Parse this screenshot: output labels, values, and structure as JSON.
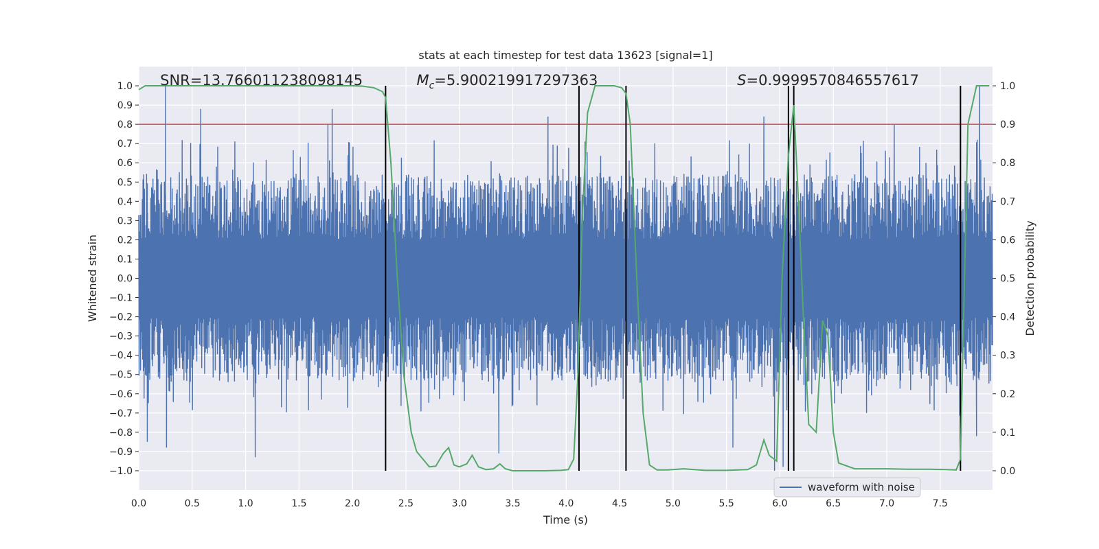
{
  "chart_data": {
    "type": "line",
    "title": "stats at each timestep for test data 13623 [signal=1]",
    "xlabel": "Time (s)",
    "ylabel": "Whitened strain",
    "ylabel_right": "Detection probability",
    "xlim": [
      0,
      7.99
    ],
    "ylim": [
      -1.1,
      1.1
    ],
    "ylim_right": [
      -0.05,
      1.05
    ],
    "x_ticks": [
      0.0,
      0.5,
      1.0,
      1.5,
      2.0,
      2.5,
      3.0,
      3.5,
      4.0,
      4.5,
      5.0,
      5.5,
      6.0,
      6.5,
      7.0,
      7.5
    ],
    "x_tick_labels": [
      "0.0",
      "0.5",
      "1.0",
      "1.5",
      "2.0",
      "2.5",
      "3.0",
      "3.5",
      "4.0",
      "4.5",
      "5.0",
      "5.5",
      "6.0",
      "6.5",
      "7.0",
      "7.5"
    ],
    "y_ticks": [
      1.0,
      0.9,
      0.8,
      0.7,
      0.6,
      0.5,
      0.4,
      0.3,
      0.2,
      0.1,
      0.0,
      -0.1,
      -0.2,
      -0.3,
      -0.4,
      -0.5,
      -0.6,
      -0.7,
      -0.8,
      -0.9,
      -1.0
    ],
    "y_tick_labels": [
      "1.0",
      "0.9",
      "0.8",
      "0.7",
      "0.6",
      "0.5",
      "0.4",
      "0.3",
      "0.2",
      "0.1",
      "0.0",
      "−0.1",
      "−0.2",
      "−0.3",
      "−0.4",
      "−0.5",
      "−0.6",
      "−0.7",
      "−0.8",
      "−0.9",
      "−1.0"
    ],
    "y_right_ticks": [
      1.0,
      0.9,
      0.8,
      0.7,
      0.6,
      0.5,
      0.4,
      0.3,
      0.2,
      0.1,
      0.0
    ],
    "y_right_tick_labels": [
      "1.0",
      "0.9",
      "0.8",
      "0.7",
      "0.6",
      "0.5",
      "0.4",
      "0.3",
      "0.2",
      "0.1",
      "0.0"
    ],
    "threshold": 0.9,
    "threshold_color": "#c44e52",
    "event_lines": [
      2.31,
      4.12,
      4.56,
      6.08,
      6.13,
      7.69
    ],
    "event_line_color": "#000000",
    "waveform": {
      "name": "waveform with noise",
      "color": "#4c72b0",
      "envelope_hint": {
        "typical_abs": 0.45,
        "max_peak": 1.0,
        "min_peak": -1.0
      },
      "notable_peaks": [
        {
          "x": 0.25,
          "y": 1.0
        },
        {
          "x": 0.58,
          "y": 0.88
        },
        {
          "x": 1.77,
          "y": 0.8
        },
        {
          "x": 1.81,
          "y": 0.88
        },
        {
          "x": 3.83,
          "y": 0.84
        },
        {
          "x": 5.85,
          "y": 0.84
        },
        {
          "x": 7.07,
          "y": 0.8
        },
        {
          "x": 7.87,
          "y": 1.0
        },
        {
          "x": 0.08,
          "y": -0.85
        },
        {
          "x": 0.26,
          "y": -0.88
        },
        {
          "x": 1.09,
          "y": -0.93
        },
        {
          "x": 3.37,
          "y": -0.91
        },
        {
          "x": 5.56,
          "y": -0.88
        },
        {
          "x": 5.95,
          "y": -1.0
        },
        {
          "x": 6.03,
          "y": -0.98
        },
        {
          "x": 7.84,
          "y": -0.82
        }
      ]
    },
    "detection_probability": {
      "name": "Detection probability",
      "color": "#55a868",
      "x": [
        0.0,
        0.06,
        0.2,
        0.5,
        1.0,
        1.5,
        2.0,
        2.1,
        2.2,
        2.28,
        2.31,
        2.36,
        2.42,
        2.48,
        2.55,
        2.6,
        2.66,
        2.72,
        2.78,
        2.85,
        2.9,
        2.95,
        3.0,
        3.07,
        3.12,
        3.18,
        3.25,
        3.32,
        3.38,
        3.43,
        3.5,
        3.6,
        3.8,
        3.95,
        4.02,
        4.07,
        4.11,
        4.15,
        4.2,
        4.27,
        4.35,
        4.45,
        4.52,
        4.56,
        4.6,
        4.66,
        4.72,
        4.78,
        4.85,
        4.95,
        5.1,
        5.3,
        5.5,
        5.7,
        5.78,
        5.85,
        5.9,
        5.97,
        6.02,
        6.08,
        6.13,
        6.17,
        6.22,
        6.27,
        6.34,
        6.4,
        6.45,
        6.5,
        6.55,
        6.7,
        6.85,
        7.0,
        7.2,
        7.4,
        7.55,
        7.65,
        7.69,
        7.76,
        7.84,
        7.9,
        7.96
      ],
      "y": [
        0.99,
        1.0,
        1.0,
        1.0,
        1.0,
        1.0,
        1.0,
        0.999,
        0.995,
        0.985,
        0.97,
        0.8,
        0.5,
        0.25,
        0.1,
        0.05,
        0.03,
        0.01,
        0.012,
        0.045,
        0.06,
        0.015,
        0.01,
        0.018,
        0.04,
        0.01,
        0.003,
        0.005,
        0.018,
        0.005,
        0.0,
        0.0,
        0.0,
        0.001,
        0.003,
        0.03,
        0.25,
        0.65,
        0.93,
        1.0,
        1.0,
        1.0,
        0.995,
        0.98,
        0.9,
        0.5,
        0.15,
        0.015,
        0.002,
        0.002,
        0.005,
        0.001,
        0.001,
        0.003,
        0.015,
        0.08,
        0.04,
        0.025,
        0.5,
        0.82,
        0.95,
        0.72,
        0.4,
        0.12,
        0.1,
        0.39,
        0.35,
        0.1,
        0.02,
        0.005,
        0.005,
        0.005,
        0.004,
        0.004,
        0.003,
        0.002,
        0.03,
        0.9,
        1.0,
        1.0,
        1.0
      ]
    },
    "annotations": [
      {
        "text": "SNR=13.766011238098145",
        "x": 0.2
      },
      {
        "prefix": "M",
        "subscript": "c",
        "text": "=5.900219917297363",
        "x": 2.6
      },
      {
        "prefix": "S",
        "text": "=0.9999570846557617",
        "x": 5.6
      }
    ],
    "legend": {
      "location": "bottom-right",
      "entries": [
        "waveform with noise"
      ]
    },
    "grid": true,
    "background": "#eaeaf2"
  }
}
